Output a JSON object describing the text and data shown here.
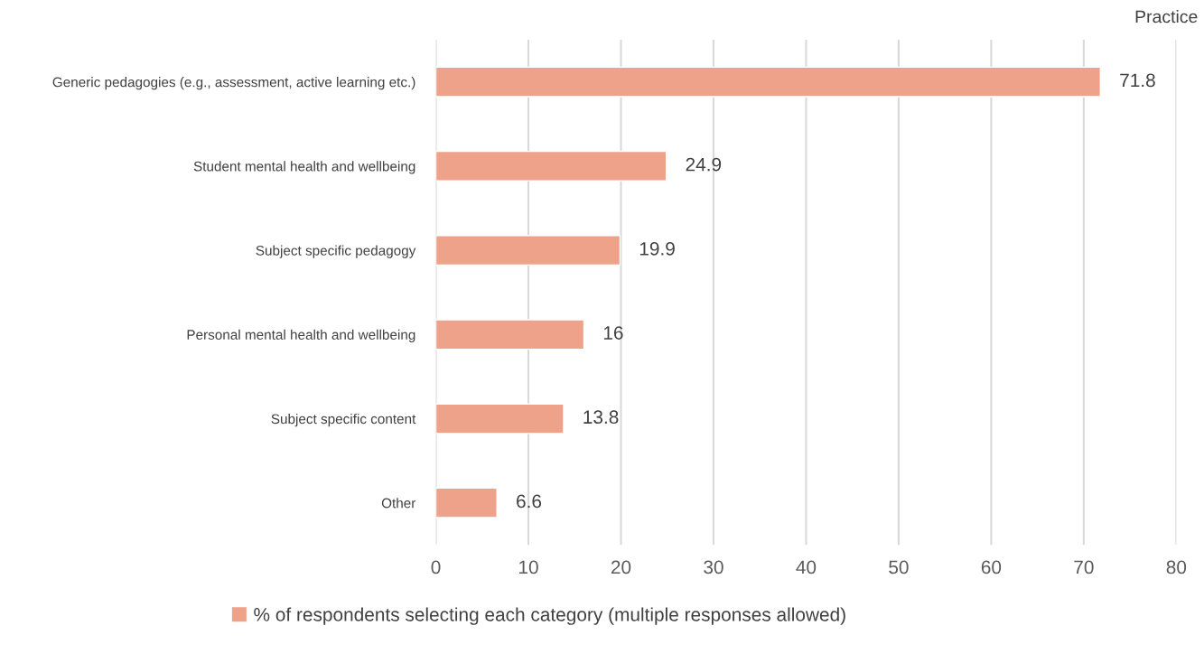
{
  "chart_data": {
    "type": "bar",
    "orientation": "horizontal",
    "categories": [
      "Generic pedagogies (e.g., assessment, active learning etc.)",
      "Student mental health and wellbeing",
      "Subject specific pedagogy",
      "Personal mental health and wellbeing",
      "Subject specific content",
      "Other"
    ],
    "series": [
      {
        "name": "% of respondents selecting each category (multiple responses allowed)",
        "color": "#eea28a",
        "values": [
          71.8,
          24.9,
          19.9,
          16,
          13.8,
          6.6
        ]
      }
    ],
    "xlim": [
      0,
      80
    ],
    "xticks": [
      0,
      10,
      20,
      30,
      40,
      50,
      60,
      70,
      80
    ],
    "grid": "x",
    "legend": "bottom",
    "data_labels": true,
    "annotations": [
      "Practice"
    ]
  }
}
